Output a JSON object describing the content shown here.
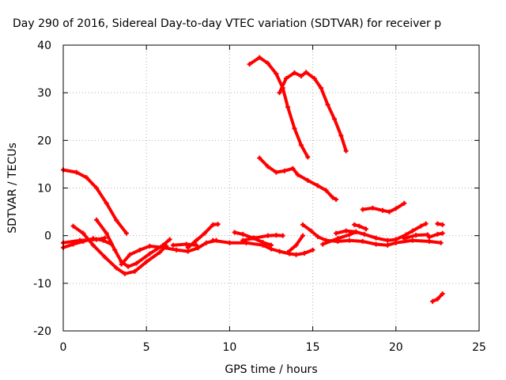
{
  "chart_data": {
    "type": "line",
    "title": "Day 290 of 2016, Sidereal Day-to-day VTEC variation (SDTVAR) for receiver p",
    "xlabel": "GPS time / hours",
    "ylabel": "SDTVAR / TECUs",
    "xlim": [
      0,
      25
    ],
    "ylim": [
      -20,
      40
    ],
    "xticks": [
      0,
      5,
      10,
      15,
      20,
      25
    ],
    "yticks": [
      -20,
      -10,
      0,
      10,
      20,
      30,
      40
    ],
    "grid": true,
    "legend": "none",
    "color": "#ff0000",
    "series": [
      {
        "points": [
          [
            0,
            13.8
          ],
          [
            0.8,
            13.3
          ],
          [
            1.4,
            12.2
          ],
          [
            2.0,
            10.0
          ],
          [
            2.6,
            6.8
          ],
          [
            3.2,
            3.2
          ],
          [
            3.8,
            0.5
          ]
        ]
      },
      {
        "points": [
          [
            0,
            -2.5
          ],
          [
            0.6,
            -1.8
          ],
          [
            1.2,
            -1.2
          ],
          [
            1.8,
            -0.6
          ],
          [
            2.4,
            -1.0
          ],
          [
            2.9,
            -1.8
          ]
        ]
      },
      {
        "points": [
          [
            0,
            -1.5
          ],
          [
            1.0,
            -1.0
          ],
          [
            2.0,
            -0.8
          ],
          [
            2.5,
            -0.5
          ]
        ]
      },
      {
        "points": [
          [
            0.6,
            2.0
          ],
          [
            1.2,
            0.5
          ],
          [
            1.8,
            -2.0
          ],
          [
            2.5,
            -4.5
          ],
          [
            3.2,
            -6.8
          ],
          [
            3.7,
            -8.0
          ],
          [
            4.3,
            -7.5
          ],
          [
            5.0,
            -5.5
          ],
          [
            5.8,
            -3.5
          ],
          [
            6.2,
            -2.2
          ]
        ]
      },
      {
        "points": [
          [
            2.0,
            3.3
          ],
          [
            2.6,
            0.5
          ],
          [
            3.1,
            -3.0
          ],
          [
            3.5,
            -5.5
          ],
          [
            3.9,
            -6.5
          ],
          [
            4.4,
            -5.8
          ],
          [
            5.2,
            -3.8
          ],
          [
            6.0,
            -2.0
          ],
          [
            6.4,
            -0.8
          ]
        ]
      },
      {
        "points": [
          [
            3.5,
            -6.0
          ],
          [
            4.0,
            -4.0
          ],
          [
            4.6,
            -3.0
          ],
          [
            5.2,
            -2.2
          ],
          [
            6.0,
            -2.5
          ],
          [
            6.8,
            -3.0
          ],
          [
            7.5,
            -3.3
          ],
          [
            8.1,
            -2.6
          ],
          [
            8.6,
            -1.5
          ],
          [
            9.2,
            -1.0
          ]
        ]
      },
      {
        "points": [
          [
            7.5,
            -2.5
          ],
          [
            8.0,
            -1.0
          ],
          [
            8.5,
            0.5
          ],
          [
            9.0,
            2.3
          ],
          [
            9.3,
            2.4
          ]
        ]
      },
      {
        "points": [
          [
            6.6,
            -2.0
          ],
          [
            7.4,
            -1.8
          ],
          [
            8.0,
            -2.0
          ]
        ]
      },
      {
        "points": [
          [
            9.0,
            -1.0
          ],
          [
            10.0,
            -1.5
          ],
          [
            11.0,
            -1.5
          ],
          [
            12.0,
            -2.0
          ],
          [
            12.5,
            -2.8
          ],
          [
            13.0,
            -3.3
          ],
          [
            13.6,
            -3.8
          ],
          [
            14.0,
            -4.0
          ],
          [
            14.5,
            -3.7
          ],
          [
            15.0,
            -3.0
          ]
        ]
      },
      {
        "points": [
          [
            10.3,
            0.7
          ],
          [
            10.8,
            0.3
          ],
          [
            11.4,
            -0.5
          ],
          [
            12.0,
            -1.4
          ],
          [
            12.5,
            -2.0
          ]
        ]
      },
      {
        "points": [
          [
            10.8,
            -1.0
          ],
          [
            11.5,
            -0.5
          ],
          [
            12.3,
            0.0
          ],
          [
            12.8,
            0.1
          ],
          [
            13.2,
            0.0
          ]
        ]
      },
      {
        "points": [
          [
            13.5,
            -3.5
          ],
          [
            14.0,
            -2.0
          ],
          [
            14.4,
            0.0
          ]
        ]
      },
      {
        "points": [
          [
            14.4,
            2.3
          ],
          [
            14.9,
            1.0
          ],
          [
            15.3,
            -0.2
          ],
          [
            15.8,
            -1.0
          ],
          [
            16.5,
            -1.2
          ],
          [
            17.2,
            -1.0
          ],
          [
            18.0,
            -1.2
          ],
          [
            18.8,
            -1.8
          ],
          [
            19.5,
            -2.0
          ],
          [
            20.0,
            -1.5
          ],
          [
            21.0,
            -1.0
          ],
          [
            22.0,
            -1.2
          ],
          [
            22.7,
            -1.5
          ]
        ]
      },
      {
        "points": [
          [
            15.6,
            -1.8
          ],
          [
            16.5,
            -0.6
          ],
          [
            17.2,
            0.2
          ],
          [
            17.6,
            0.8
          ],
          [
            18.1,
            0.3
          ],
          [
            18.8,
            -0.5
          ],
          [
            19.5,
            -1.0
          ],
          [
            20.0,
            -0.8
          ]
        ]
      },
      {
        "points": [
          [
            16.4,
            0.5
          ],
          [
            17.0,
            1.0
          ],
          [
            17.6,
            0.8
          ]
        ]
      },
      {
        "points": [
          [
            17.5,
            2.3
          ],
          [
            17.8,
            2.0
          ],
          [
            18.2,
            1.4
          ]
        ]
      },
      {
        "points": [
          [
            20.0,
            -0.8
          ],
          [
            20.6,
            0.2
          ],
          [
            21.0,
            1.0
          ],
          [
            21.5,
            2.0
          ],
          [
            21.8,
            2.5
          ]
        ]
      },
      {
        "points": [
          [
            20.5,
            -0.6
          ],
          [
            21.2,
            0.1
          ],
          [
            21.9,
            0.2
          ]
        ]
      },
      {
        "points": [
          [
            22.0,
            -0.3
          ],
          [
            22.5,
            0.3
          ],
          [
            22.8,
            0.5
          ]
        ]
      },
      {
        "points": [
          [
            22.5,
            2.5
          ],
          [
            22.8,
            2.3
          ]
        ]
      },
      {
        "points": [
          [
            11.2,
            36.0
          ],
          [
            11.8,
            37.4
          ],
          [
            12.3,
            36.2
          ],
          [
            12.8,
            34.0
          ],
          [
            13.2,
            31.0
          ],
          [
            13.5,
            27.0
          ],
          [
            13.9,
            22.5
          ],
          [
            14.3,
            19.0
          ],
          [
            14.7,
            16.5
          ]
        ]
      },
      {
        "points": [
          [
            13.0,
            30.0
          ],
          [
            13.4,
            33.0
          ],
          [
            13.9,
            34.2
          ],
          [
            14.3,
            33.5
          ],
          [
            14.6,
            34.3
          ],
          [
            15.1,
            33.0
          ],
          [
            15.5,
            31.0
          ],
          [
            15.9,
            27.5
          ],
          [
            16.3,
            24.5
          ],
          [
            16.7,
            21.0
          ],
          [
            17.0,
            17.8
          ]
        ]
      },
      {
        "points": [
          [
            11.8,
            16.3
          ],
          [
            12.3,
            14.5
          ],
          [
            12.8,
            13.3
          ],
          [
            13.3,
            13.6
          ],
          [
            13.8,
            14.1
          ],
          [
            14.1,
            12.8
          ],
          [
            14.7,
            11.6
          ],
          [
            15.3,
            10.5
          ],
          [
            15.8,
            9.5
          ],
          [
            16.2,
            8.0
          ],
          [
            16.4,
            7.6
          ]
        ]
      },
      {
        "points": [
          [
            18.0,
            5.5
          ],
          [
            18.6,
            5.8
          ],
          [
            19.2,
            5.3
          ],
          [
            19.6,
            5.0
          ],
          [
            20.0,
            5.7
          ],
          [
            20.5,
            6.8
          ]
        ]
      },
      {
        "points": [
          [
            22.2,
            -13.8
          ],
          [
            22.5,
            -13.3
          ],
          [
            22.8,
            -12.2
          ]
        ]
      }
    ]
  }
}
